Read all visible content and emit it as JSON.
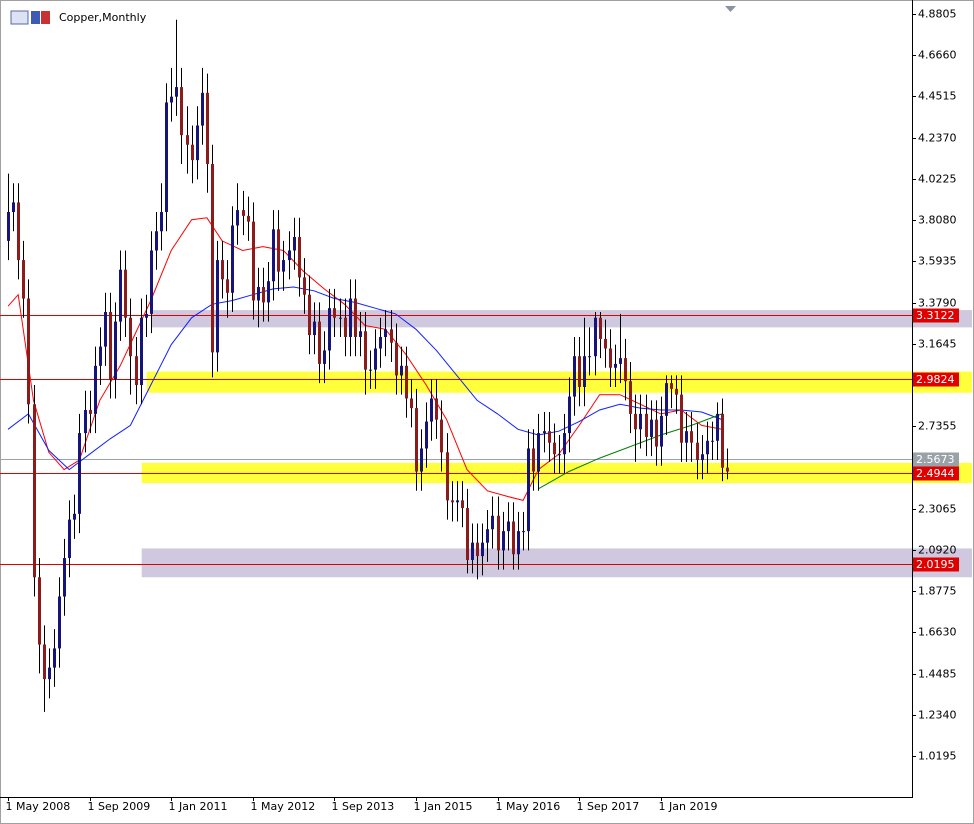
{
  "chart_data": {
    "type": "candlestick",
    "title": "Copper,Monthly",
    "categories": [
      "1 May 2008",
      null,
      null,
      null,
      null,
      null,
      null,
      null,
      null,
      null,
      null,
      null,
      null,
      null,
      null,
      null,
      "1 Sep 2009",
      null,
      null,
      null,
      null,
      null,
      null,
      null,
      null,
      null,
      null,
      null,
      null,
      null,
      null,
      null,
      "1 Jan 2011",
      null,
      null,
      null,
      null,
      null,
      null,
      null,
      null,
      null,
      null,
      null,
      null,
      null,
      null,
      null,
      "1 May 2012",
      null,
      null,
      null,
      null,
      null,
      null,
      null,
      null,
      null,
      null,
      null,
      null,
      null,
      null,
      null,
      "1 Sep 2013",
      null,
      null,
      null,
      null,
      null,
      null,
      null,
      null,
      null,
      null,
      null,
      null,
      null,
      null,
      null,
      "1 Jan 2015",
      null,
      null,
      null,
      null,
      null,
      null,
      null,
      null,
      null,
      null,
      null,
      null,
      null,
      null,
      null,
      "1 May 2016",
      null,
      null,
      null,
      null,
      null,
      null,
      null,
      null,
      null,
      null,
      null,
      null,
      null,
      null,
      null,
      "1 Sep 2017",
      null,
      null,
      null,
      null,
      null,
      null,
      null,
      null,
      null,
      null,
      null,
      null,
      null,
      null,
      null,
      "1 Jan 2019",
      null,
      null,
      null,
      null,
      null,
      null,
      null,
      null,
      null,
      null,
      null,
      null,
      null
    ],
    "open": [
      3.7,
      3.85,
      3.9,
      3.6,
      3.4,
      2.85,
      1.95,
      1.6,
      1.42,
      1.48,
      1.58,
      1.85,
      2.05,
      2.25,
      2.28,
      2.7,
      2.82,
      2.8,
      3.05,
      3.15,
      3.33,
      2.98,
      3.28,
      3.55,
      3.3,
      3.1,
      2.95,
      3.3,
      3.32,
      3.65,
      3.75,
      3.85,
      4.42,
      4.45,
      4.5,
      4.25,
      4.2,
      4.12,
      4.3,
      4.47,
      4.1,
      3.12,
      3.6,
      3.5,
      3.43,
      3.78,
      3.86,
      3.83,
      3.8,
      3.39,
      3.46,
      3.38,
      3.49,
      3.76,
      3.54,
      3.6,
      3.65,
      3.72,
      3.51,
      3.42,
      3.21,
      3.28,
      3.06,
      3.13,
      3.35,
      3.3,
      3.3,
      3.2,
      3.4,
      3.2,
      3.23,
      3.03,
      3.03,
      3.14,
      3.2,
      3.24,
      3.17,
      3.0,
      3.05,
      2.88,
      2.83,
      2.5,
      2.62,
      2.76,
      2.88,
      2.77,
      2.6,
      2.35,
      2.34,
      2.35,
      2.31,
      2.04,
      2.13,
      2.06,
      2.13,
      2.2,
      2.27,
      2.09,
      2.19,
      2.24,
      2.07,
      2.19,
      2.19,
      2.62,
      2.5,
      2.7,
      2.71,
      2.65,
      2.59,
      2.59,
      2.7,
      2.89,
      3.1,
      2.94,
      3.1,
      3.1,
      3.3,
      3.19,
      3.14,
      3.04,
      3.06,
      3.09,
      2.97,
      2.8,
      2.72,
      2.8,
      2.68,
      2.77,
      2.63,
      2.79,
      2.96,
      2.93,
      2.9,
      2.65,
      2.71,
      2.65,
      2.56,
      2.59,
      2.66,
      2.66,
      2.8,
      2.52
    ],
    "high": [
      4.05,
      4.0,
      4.0,
      3.7,
      3.5,
      2.95,
      2.05,
      1.7,
      1.58,
      1.68,
      1.95,
      2.15,
      2.35,
      2.38,
      2.8,
      2.92,
      2.92,
      3.15,
      3.25,
      3.43,
      3.43,
      3.38,
      3.65,
      3.65,
      3.4,
      3.2,
      3.4,
      3.42,
      3.75,
      3.85,
      4.0,
      4.52,
      4.6,
      4.85,
      4.6,
      4.4,
      4.3,
      4.4,
      4.6,
      4.57,
      4.2,
      3.7,
      3.7,
      3.6,
      3.88,
      4.0,
      3.96,
      3.93,
      3.9,
      3.56,
      3.56,
      3.59,
      3.86,
      3.86,
      3.7,
      3.75,
      3.82,
      3.82,
      3.61,
      3.52,
      3.38,
      3.38,
      3.23,
      3.45,
      3.45,
      3.4,
      3.4,
      3.5,
      3.5,
      3.33,
      3.33,
      3.13,
      3.24,
      3.3,
      3.34,
      3.34,
      3.27,
      3.15,
      3.15,
      2.98,
      2.93,
      2.72,
      2.86,
      2.98,
      2.98,
      2.87,
      2.7,
      2.45,
      2.45,
      2.45,
      2.41,
      2.23,
      2.23,
      2.23,
      2.3,
      2.37,
      2.37,
      2.29,
      2.34,
      2.34,
      2.29,
      2.29,
      2.72,
      2.72,
      2.8,
      2.81,
      2.81,
      2.75,
      2.69,
      2.8,
      2.99,
      3.2,
      3.2,
      3.3,
      3.25,
      3.33,
      3.33,
      3.29,
      3.24,
      3.16,
      3.32,
      3.19,
      3.07,
      2.9,
      2.9,
      2.9,
      2.87,
      2.87,
      2.89,
      3.0,
      3.0,
      3.0,
      3.0,
      2.81,
      2.81,
      2.75,
      2.69,
      2.76,
      2.76,
      2.86,
      2.88,
      2.62
    ],
    "low": [
      3.6,
      3.75,
      3.5,
      3.3,
      2.75,
      1.85,
      1.45,
      1.25,
      1.32,
      1.38,
      1.48,
      1.75,
      1.95,
      2.15,
      2.18,
      2.6,
      2.7,
      2.7,
      2.95,
      3.05,
      2.88,
      2.88,
      3.18,
      3.2,
      2.9,
      2.85,
      2.85,
      3.2,
      3.22,
      3.55,
      3.65,
      3.75,
      4.32,
      4.35,
      4.1,
      4.05,
      4.0,
      4.02,
      4.2,
      3.95,
      2.99,
      3.02,
      3.4,
      3.3,
      3.33,
      3.68,
      3.73,
      3.7,
      3.29,
      3.25,
      3.28,
      3.28,
      3.39,
      3.44,
      3.44,
      3.5,
      3.55,
      3.41,
      3.32,
      3.11,
      3.11,
      2.96,
      2.96,
      3.03,
      3.2,
      3.2,
      3.1,
      3.1,
      3.1,
      3.1,
      2.9,
      2.93,
      2.93,
      3.04,
      3.1,
      3.07,
      2.9,
      2.9,
      2.78,
      2.73,
      2.4,
      2.4,
      2.52,
      2.66,
      2.67,
      2.5,
      2.25,
      2.24,
      2.24,
      2.21,
      1.97,
      1.97,
      1.94,
      1.96,
      2.03,
      2.1,
      1.99,
      1.99,
      2.09,
      1.99,
      1.99,
      2.09,
      2.09,
      2.4,
      2.4,
      2.6,
      2.55,
      2.49,
      2.49,
      2.49,
      2.6,
      2.79,
      2.84,
      2.84,
      3.0,
      3.0,
      3.09,
      3.04,
      2.94,
      2.94,
      2.96,
      2.87,
      2.7,
      2.55,
      2.62,
      2.58,
      2.58,
      2.53,
      2.53,
      2.69,
      2.83,
      2.8,
      2.55,
      2.55,
      2.55,
      2.46,
      2.46,
      2.49,
      2.56,
      2.56,
      2.45,
      2.46
    ],
    "close": [
      3.85,
      3.9,
      3.6,
      3.4,
      2.85,
      1.95,
      1.6,
      1.42,
      1.48,
      1.58,
      1.85,
      2.05,
      2.25,
      2.28,
      2.7,
      2.82,
      2.8,
      3.05,
      3.15,
      3.33,
      2.98,
      3.28,
      3.55,
      3.3,
      3.1,
      2.95,
      3.3,
      3.32,
      3.65,
      3.75,
      3.85,
      4.42,
      4.45,
      4.5,
      4.25,
      4.2,
      4.12,
      4.3,
      4.47,
      4.1,
      3.12,
      3.6,
      3.5,
      3.43,
      3.78,
      3.86,
      3.83,
      3.8,
      3.39,
      3.46,
      3.38,
      3.49,
      3.76,
      3.54,
      3.6,
      3.65,
      3.72,
      3.51,
      3.42,
      3.21,
      3.28,
      3.06,
      3.13,
      3.35,
      3.3,
      3.3,
      3.2,
      3.4,
      3.2,
      3.23,
      3.03,
      3.03,
      3.14,
      3.2,
      3.24,
      3.17,
      3.0,
      3.05,
      2.88,
      2.83,
      2.5,
      2.62,
      2.76,
      2.88,
      2.77,
      2.6,
      2.35,
      2.34,
      2.35,
      2.31,
      2.04,
      2.13,
      2.06,
      2.13,
      2.2,
      2.27,
      2.09,
      2.19,
      2.24,
      2.07,
      2.19,
      2.19,
      2.62,
      2.5,
      2.7,
      2.71,
      2.65,
      2.59,
      2.59,
      2.7,
      2.89,
      3.1,
      2.94,
      3.1,
      3.1,
      3.3,
      3.19,
      3.14,
      3.04,
      3.06,
      3.09,
      2.97,
      2.8,
      2.72,
      2.8,
      2.68,
      2.77,
      2.63,
      2.79,
      2.96,
      2.93,
      2.9,
      2.65,
      2.71,
      2.65,
      2.56,
      2.59,
      2.66,
      2.66,
      2.8,
      2.52,
      2.5
    ],
    "up_color": "#14147a",
    "down_color": "#8c1c1c",
    "wick_color": "#000000",
    "ylim": [
      0.807,
      4.953
    ],
    "yticks": [
      {
        "value": 4.8805,
        "label": "4.8805"
      },
      {
        "value": 4.666,
        "label": "4.6660"
      },
      {
        "value": 4.4515,
        "label": "4.4515"
      },
      {
        "value": 4.237,
        "label": "4.2370"
      },
      {
        "value": 4.0225,
        "label": "4.0225"
      },
      {
        "value": 3.808,
        "label": "3.8080"
      },
      {
        "value": 3.5935,
        "label": "3.5935"
      },
      {
        "value": 3.379,
        "label": "3.3790"
      },
      {
        "value": 3.1645,
        "label": "3.1645"
      },
      {
        "value": 2.7355,
        "label": "2.7355"
      },
      {
        "value": 2.3065,
        "label": "2.3065"
      },
      {
        "value": 2.092,
        "label": "2.0920"
      },
      {
        "value": 1.8775,
        "label": "1.8775"
      },
      {
        "value": 1.663,
        "label": "1.6630"
      },
      {
        "value": 1.4485,
        "label": "1.4485"
      },
      {
        "value": 1.234,
        "label": "1.2340"
      },
      {
        "value": 1.0195,
        "label": "1.0195"
      }
    ],
    "zones": [
      {
        "from": 29,
        "low": 3.25,
        "high": 3.34,
        "color": "#d0c8de"
      },
      {
        "from": 28,
        "low": 2.91,
        "high": 3.02,
        "color": "#ffff3c"
      },
      {
        "from": 27,
        "low": 2.44,
        "high": 2.545,
        "color": "#ffff3c"
      },
      {
        "from": 27,
        "low": 1.95,
        "high": 2.1,
        "color": "#d0c8de"
      }
    ],
    "levels": [
      {
        "value": 3.3122,
        "color": "#e00000"
      },
      {
        "value": 2.9824,
        "color": "#e00000"
      },
      {
        "value": 2.5673,
        "color": "#9aa2a8"
      },
      {
        "value": 2.4944,
        "color": "#e00000"
      },
      {
        "value": 2.0195,
        "color": "#e00000"
      }
    ],
    "moving_averages": [
      {
        "color": "#ff0000",
        "x": [
          0,
          2,
          5,
          8,
          11,
          14,
          18,
          22,
          28,
          32,
          36,
          39,
          42,
          46,
          50,
          54,
          58,
          62,
          66,
          70,
          74,
          78,
          82,
          86,
          90,
          94,
          98,
          101,
          104,
          108,
          112,
          116,
          120,
          124,
          128,
          132,
          136,
          140
        ],
        "values": [
          3.36,
          3.42,
          2.87,
          2.6,
          2.51,
          2.56,
          2.87,
          3.05,
          3.39,
          3.65,
          3.81,
          3.82,
          3.7,
          3.65,
          3.67,
          3.65,
          3.54,
          3.45,
          3.37,
          3.26,
          3.24,
          3.11,
          2.95,
          2.77,
          2.51,
          2.4,
          2.37,
          2.35,
          2.51,
          2.59,
          2.74,
          2.9,
          2.9,
          2.85,
          2.8,
          2.82,
          2.74,
          2.72
        ]
      },
      {
        "color": "#1020ff",
        "x": [
          0,
          4,
          8,
          12,
          16,
          20,
          24,
          28,
          32,
          36,
          40,
          44,
          48,
          52,
          56,
          60,
          64,
          68,
          72,
          76,
          80,
          84,
          88,
          92,
          96,
          100,
          104,
          108,
          112,
          116,
          120,
          124,
          128,
          132,
          136,
          140
        ],
        "values": [
          2.72,
          2.8,
          2.61,
          2.51,
          2.59,
          2.67,
          2.74,
          2.95,
          3.16,
          3.3,
          3.37,
          3.39,
          3.42,
          3.45,
          3.46,
          3.44,
          3.4,
          3.38,
          3.35,
          3.32,
          3.24,
          3.13,
          3.0,
          2.87,
          2.8,
          2.72,
          2.69,
          2.71,
          2.76,
          2.82,
          2.85,
          2.83,
          2.82,
          2.82,
          2.81,
          2.77
        ]
      },
      {
        "color": "#008000",
        "x": [
          104,
          110,
          116,
          122,
          128,
          134,
          140
        ],
        "values": [
          2.41,
          2.5,
          2.57,
          2.63,
          2.69,
          2.74,
          2.8
        ]
      }
    ]
  }
}
